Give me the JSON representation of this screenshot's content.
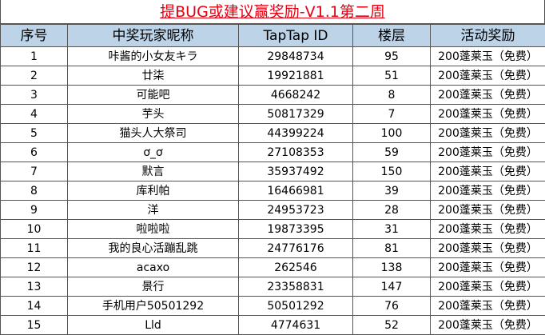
{
  "title": "提BUG或建议赢奖励-V1.1第二周",
  "headers": [
    "序号",
    "中奖玩家昵称",
    "TapTap ID",
    "楼层",
    "活动奖励"
  ],
  "rows": [
    [
      "1",
      "咔酱的小女友キラ",
      "29848734",
      "95",
      "200蓬莱玉（免费）"
    ],
    [
      "2",
      "廿柒",
      "19921881",
      "51",
      "200蓬莱玉（免费）"
    ],
    [
      "3",
      "可能吧",
      "4668242",
      "8",
      "200蓬莱玉（免费）"
    ],
    [
      "4",
      "芋头",
      "50817329",
      "7",
      "200蓬莱玉（免费）"
    ],
    [
      "5",
      "猫头人大祭司",
      "44399224",
      "100",
      "200蓬莱玉（免费）"
    ],
    [
      "6",
      "ơ_ơ",
      "27108353",
      "59",
      "200蓬莱玉（免费）"
    ],
    [
      "7",
      "默言",
      "35937492",
      "150",
      "200蓬莱玉（免费）"
    ],
    [
      "8",
      "库利帕",
      "16466981",
      "39",
      "200蓬莱玉（免费）"
    ],
    [
      "9",
      "洋",
      "24953723",
      "28",
      "200蓬莱玉（免费）"
    ],
    [
      "10",
      "啦啦啦",
      "19873395",
      "31",
      "200蓬莱玉（免费）"
    ],
    [
      "11",
      "我的良心活蹦乱跳",
      "24776176",
      "81",
      "200蓬莱玉（免费）"
    ],
    [
      "12",
      "acaxo",
      "262546",
      "138",
      "200蓬莱玉（免费）"
    ],
    [
      "13",
      "景行",
      "23358831",
      "147",
      "200蓬莱玉（免费）"
    ],
    [
      "14",
      "手机用户50501292",
      "50501292",
      "76",
      "200蓬莱玉（免费）"
    ],
    [
      "15",
      "Lld",
      "4774631",
      "52",
      "200蓬莱玉（免费）"
    ]
  ]
}
